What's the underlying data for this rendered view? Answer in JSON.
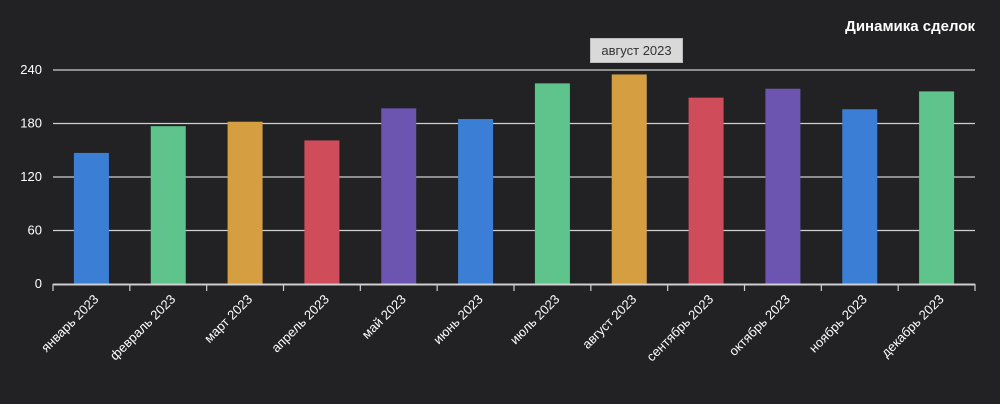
{
  "chart_data": {
    "type": "bar",
    "title": "Динамика сделок",
    "categories": [
      "январь 2023",
      "февраль 2023",
      "март 2023",
      "апрель 2023",
      "май 2023",
      "июнь 2023",
      "июль 2023",
      "август 2023",
      "сентябрь 2023",
      "октябрь 2023",
      "ноябрь 2023",
      "декабрь 2023"
    ],
    "values": [
      147,
      177,
      182,
      161,
      197,
      185,
      225,
      235,
      209,
      219,
      196,
      216
    ],
    "colors": [
      "#3a7fd5",
      "#5ec48b",
      "#d59e40",
      "#cf4d5b",
      "#6b55b0",
      "#3a7fd5",
      "#5ec48b",
      "#d59e40",
      "#cf4d5b",
      "#6b55b0",
      "#3a7fd5",
      "#5ec48b"
    ],
    "yticks": [
      0,
      60,
      120,
      180,
      240
    ],
    "ylim": [
      0,
      240
    ],
    "grid": true,
    "xlabel": "",
    "ylabel": ""
  },
  "tooltip": {
    "text": "август 2023"
  }
}
